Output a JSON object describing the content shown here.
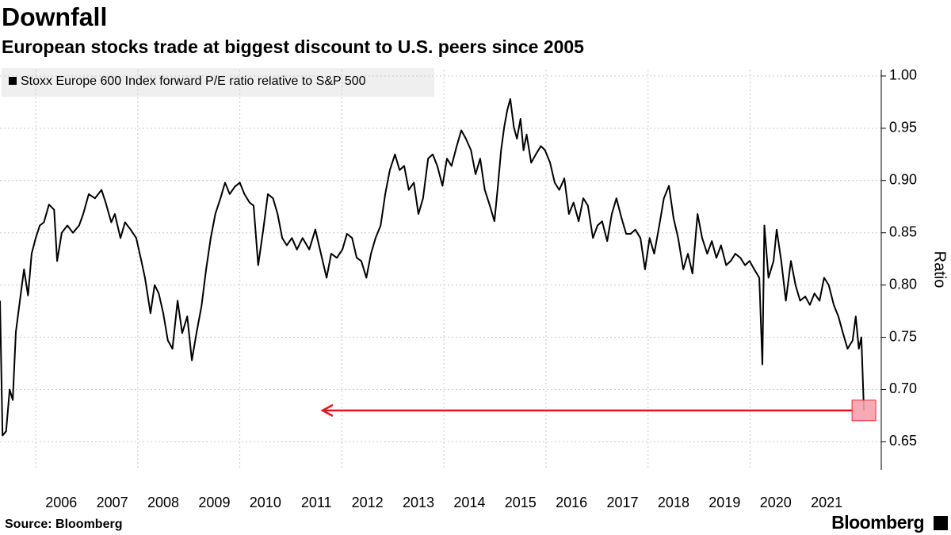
{
  "chart_data": {
    "type": "line",
    "title": "Downfall",
    "subtitle": "European stocks trade at biggest discount to U.S. peers since 2005",
    "source": "Source: Bloomberg",
    "brand": "Bloomberg",
    "ylabel": "Ratio",
    "legend": "top-left",
    "grid": true,
    "x": [
      2005.3,
      2005.35,
      2005.42,
      2005.49,
      2005.55,
      2005.61,
      2005.69,
      2005.77,
      2005.85,
      2005.92,
      2006.0,
      2006.08,
      2006.16,
      2006.26,
      2006.36,
      2006.42,
      2006.51,
      2006.62,
      2006.73,
      2006.85,
      2006.93,
      2007.04,
      2007.16,
      2007.29,
      2007.37,
      2007.48,
      2007.55,
      2007.66,
      2007.75,
      2007.86,
      2007.97,
      2008.07,
      2008.14,
      2008.25,
      2008.33,
      2008.41,
      2008.5,
      2008.59,
      2008.68,
      2008.78,
      2008.87,
      2008.97,
      2009.06,
      2009.15,
      2009.25,
      2009.34,
      2009.43,
      2009.52,
      2009.62,
      2009.71,
      2009.8,
      2009.9,
      2010.0,
      2010.09,
      2010.19,
      2010.27,
      2010.36,
      2010.46,
      2010.55,
      2010.65,
      2010.74,
      2010.83,
      2010.92,
      2011.02,
      2011.12,
      2011.23,
      2011.36,
      2011.48,
      2011.59,
      2011.7,
      2011.79,
      2011.9,
      2012.01,
      2012.1,
      2012.2,
      2012.29,
      2012.38,
      2012.48,
      2012.57,
      2012.66,
      2012.76,
      2012.85,
      2012.94,
      2013.04,
      2013.13,
      2013.22,
      2013.31,
      2013.41,
      2013.5,
      2013.59,
      2013.69,
      2013.78,
      2013.87,
      2013.97,
      2014.06,
      2014.15,
      2014.25,
      2014.34,
      2014.43,
      2014.53,
      2014.62,
      2014.71,
      2014.8,
      2014.9,
      2014.99,
      2015.05,
      2015.12,
      2015.18,
      2015.24,
      2015.3,
      2015.37,
      2015.43,
      2015.5,
      2015.56,
      2015.62,
      2015.71,
      2015.8,
      2015.9,
      2015.98,
      2016.08,
      2016.17,
      2016.26,
      2016.36,
      2016.45,
      2016.54,
      2016.64,
      2016.73,
      2016.82,
      2016.92,
      2017.01,
      2017.1,
      2017.2,
      2017.29,
      2017.38,
      2017.48,
      2017.57,
      2017.66,
      2017.75,
      2017.85,
      2017.94,
      2018.03,
      2018.12,
      2018.22,
      2018.31,
      2018.41,
      2018.5,
      2018.59,
      2018.69,
      2018.78,
      2018.87,
      2018.97,
      2019.06,
      2019.16,
      2019.25,
      2019.34,
      2019.43,
      2019.53,
      2019.62,
      2019.71,
      2019.81,
      2019.9,
      2019.99,
      2020.08,
      2020.18,
      2020.24,
      2020.28,
      2020.36,
      2020.46,
      2020.52,
      2020.61,
      2020.7,
      2020.8,
      2020.89,
      2020.98,
      2021.08,
      2021.17,
      2021.26,
      2021.36,
      2021.45,
      2021.54,
      2021.64,
      2021.73,
      2021.82,
      2021.91,
      2022.01,
      2022.07,
      2022.13,
      2022.18,
      2022.23
    ],
    "series": [
      {
        "name": "Stoxx Europe 600 Index forward P/E ratio relative to S&P 500",
        "color": "#000000",
        "values": [
          0.785,
          0.656,
          0.66,
          0.7,
          0.69,
          0.755,
          0.785,
          0.815,
          0.79,
          0.83,
          0.845,
          0.857,
          0.86,
          0.877,
          0.872,
          0.823,
          0.85,
          0.857,
          0.85,
          0.857,
          0.868,
          0.887,
          0.883,
          0.891,
          0.879,
          0.86,
          0.868,
          0.845,
          0.86,
          0.853,
          0.845,
          0.823,
          0.807,
          0.773,
          0.8,
          0.792,
          0.773,
          0.747,
          0.739,
          0.785,
          0.754,
          0.77,
          0.728,
          0.754,
          0.78,
          0.815,
          0.845,
          0.868,
          0.883,
          0.898,
          0.887,
          0.894,
          0.898,
          0.887,
          0.879,
          0.876,
          0.819,
          0.853,
          0.887,
          0.883,
          0.868,
          0.845,
          0.838,
          0.845,
          0.834,
          0.845,
          0.834,
          0.853,
          0.83,
          0.807,
          0.83,
          0.826,
          0.834,
          0.849,
          0.845,
          0.826,
          0.823,
          0.807,
          0.83,
          0.845,
          0.857,
          0.887,
          0.91,
          0.925,
          0.91,
          0.914,
          0.891,
          0.898,
          0.868,
          0.883,
          0.921,
          0.925,
          0.914,
          0.895,
          0.921,
          0.914,
          0.933,
          0.948,
          0.94,
          0.929,
          0.906,
          0.921,
          0.891,
          0.876,
          0.861,
          0.891,
          0.929,
          0.951,
          0.967,
          0.978,
          0.951,
          0.94,
          0.959,
          0.929,
          0.944,
          0.917,
          0.925,
          0.933,
          0.929,
          0.917,
          0.898,
          0.891,
          0.902,
          0.868,
          0.879,
          0.861,
          0.883,
          0.876,
          0.845,
          0.857,
          0.861,
          0.842,
          0.868,
          0.883,
          0.864,
          0.849,
          0.849,
          0.853,
          0.845,
          0.815,
          0.845,
          0.83,
          0.857,
          0.883,
          0.895,
          0.864,
          0.845,
          0.815,
          0.83,
          0.811,
          0.868,
          0.845,
          0.83,
          0.842,
          0.826,
          0.838,
          0.819,
          0.823,
          0.83,
          0.826,
          0.819,
          0.823,
          0.815,
          0.807,
          0.724,
          0.857,
          0.807,
          0.823,
          0.853,
          0.823,
          0.785,
          0.823,
          0.8,
          0.785,
          0.789,
          0.781,
          0.792,
          0.785,
          0.807,
          0.8,
          0.781,
          0.77,
          0.754,
          0.739,
          0.747,
          0.77,
          0.739,
          0.75,
          0.68
        ]
      }
    ],
    "xlim": [
      2005.3,
      2022.57
    ],
    "ylim": [
      0.623,
      1.006
    ],
    "xticks": [
      {
        "value": 2006.5,
        "label": "2006"
      },
      {
        "value": 2007.5,
        "label": "2007"
      },
      {
        "value": 2008.5,
        "label": "2008"
      },
      {
        "value": 2009.5,
        "label": "2009"
      },
      {
        "value": 2010.5,
        "label": "2010"
      },
      {
        "value": 2011.5,
        "label": "2011"
      },
      {
        "value": 2012.5,
        "label": "2012"
      },
      {
        "value": 2013.5,
        "label": "2013"
      },
      {
        "value": 2014.5,
        "label": "2014"
      },
      {
        "value": 2015.5,
        "label": "2015"
      },
      {
        "value": 2016.5,
        "label": "2016"
      },
      {
        "value": 2017.5,
        "label": "2017"
      },
      {
        "value": 2018.5,
        "label": "2018"
      },
      {
        "value": 2019.5,
        "label": "2019"
      },
      {
        "value": 2020.5,
        "label": "2020"
      },
      {
        "value": 2021.5,
        "label": "2021"
      }
    ],
    "xgrid": [
      2006,
      2008,
      2010,
      2012,
      2014,
      2016,
      2018,
      2020
    ],
    "yticks": [
      {
        "value": 1,
        "label": "1.00"
      },
      {
        "value": 0.95,
        "label": "0.95"
      },
      {
        "value": 0.9,
        "label": "0.90"
      },
      {
        "value": 0.85,
        "label": "0.85"
      },
      {
        "value": 0.8,
        "label": "0.80"
      },
      {
        "value": 0.75,
        "label": "0.75"
      },
      {
        "value": 0.7,
        "label": "0.70"
      },
      {
        "value": 0.65,
        "label": "0.65"
      }
    ],
    "highlight_color": "#e8141b"
  }
}
